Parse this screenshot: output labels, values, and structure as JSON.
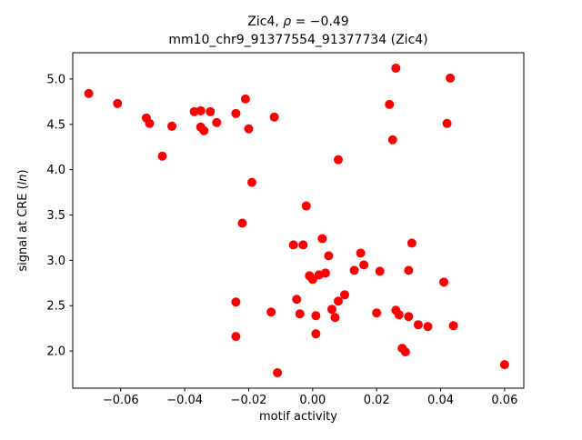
{
  "titles": {
    "l1a": "Zic4, ",
    "l1b": "ρ",
    "l1c": " = −0.49",
    "line2": "mm10_chr9_91377554_91377734 (Zic4)"
  },
  "ylabel_parts": {
    "a": "signal at CRE (",
    "b": "ln",
    "c": ")"
  },
  "chart_data": {
    "type": "scatter",
    "title": "Zic4, ρ = −0.49",
    "subtitle": "mm10_chr9_91377554_91377734 (Zic4)",
    "xlabel": "motif activity",
    "ylabel": "signal at CRE (ln)",
    "xlim": [
      -0.075,
      0.066
    ],
    "ylim": [
      1.59,
      5.29
    ],
    "xticks": [
      -0.06,
      -0.04,
      -0.02,
      0.0,
      0.02,
      0.04,
      0.06
    ],
    "xtick_labels": [
      "−0.06",
      "−0.04",
      "−0.02",
      "0.00",
      "0.02",
      "0.04",
      "0.06"
    ],
    "yticks": [
      2.0,
      2.5,
      3.0,
      3.5,
      4.0,
      4.5,
      5.0
    ],
    "ytick_labels": [
      "2.0",
      "2.5",
      "3.0",
      "3.5",
      "4.0",
      "4.5",
      "5.0"
    ],
    "grid": false,
    "legend": null,
    "marker": "circle",
    "marker_color": "#ff0000",
    "points": [
      [
        -0.07,
        4.84
      ],
      [
        -0.061,
        4.73
      ],
      [
        -0.052,
        4.57
      ],
      [
        -0.051,
        4.51
      ],
      [
        -0.047,
        4.15
      ],
      [
        -0.044,
        4.48
      ],
      [
        -0.037,
        4.64
      ],
      [
        -0.035,
        4.65
      ],
      [
        -0.035,
        4.47
      ],
      [
        -0.034,
        4.43
      ],
      [
        -0.032,
        4.64
      ],
      [
        -0.03,
        4.52
      ],
      [
        -0.024,
        4.62
      ],
      [
        -0.021,
        4.78
      ],
      [
        -0.02,
        4.45
      ],
      [
        -0.012,
        4.58
      ],
      [
        -0.019,
        3.86
      ],
      [
        -0.022,
        3.41
      ],
      [
        -0.024,
        2.54
      ],
      [
        -0.024,
        2.16
      ],
      [
        -0.013,
        2.43
      ],
      [
        -0.011,
        1.76
      ],
      [
        -0.006,
        3.17
      ],
      [
        -0.003,
        3.17
      ],
      [
        -0.002,
        3.6
      ],
      [
        -0.005,
        2.57
      ],
      [
        -0.004,
        2.41
      ],
      [
        -0.001,
        2.83
      ],
      [
        0.0,
        2.79
      ],
      [
        0.001,
        2.39
      ],
      [
        0.001,
        2.19
      ],
      [
        0.002,
        2.84
      ],
      [
        0.003,
        3.24
      ],
      [
        0.004,
        2.86
      ],
      [
        0.005,
        3.05
      ],
      [
        0.006,
        2.46
      ],
      [
        0.007,
        2.37
      ],
      [
        0.008,
        2.55
      ],
      [
        0.008,
        4.11
      ],
      [
        0.01,
        2.62
      ],
      [
        0.013,
        2.89
      ],
      [
        0.015,
        3.08
      ],
      [
        0.016,
        2.95
      ],
      [
        0.02,
        2.42
      ],
      [
        0.021,
        2.88
      ],
      [
        0.024,
        4.72
      ],
      [
        0.025,
        4.33
      ],
      [
        0.026,
        5.12
      ],
      [
        0.026,
        2.45
      ],
      [
        0.027,
        2.4
      ],
      [
        0.028,
        2.03
      ],
      [
        0.029,
        1.99
      ],
      [
        0.03,
        2.38
      ],
      [
        0.03,
        2.89
      ],
      [
        0.031,
        3.19
      ],
      [
        0.033,
        2.29
      ],
      [
        0.036,
        2.27
      ],
      [
        0.041,
        2.76
      ],
      [
        0.042,
        4.51
      ],
      [
        0.043,
        5.01
      ],
      [
        0.044,
        2.28
      ],
      [
        0.06,
        1.85
      ]
    ]
  }
}
